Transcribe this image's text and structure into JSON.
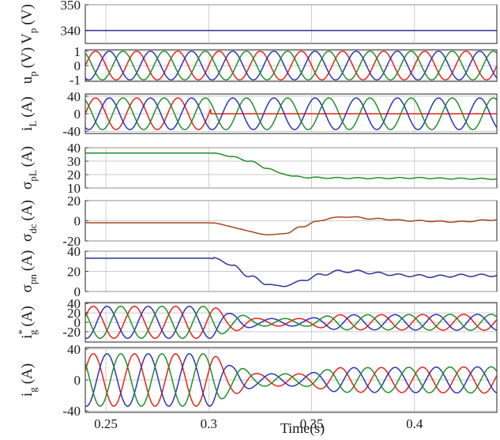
{
  "chart_data": {
    "type": "line",
    "xlabel": "Time(s)",
    "xlim": [
      0.24,
      0.44
    ],
    "xticks": [
      0.25,
      0.3,
      0.35,
      0.4
    ],
    "xtick_labels": [
      "0.25",
      "0.3",
      "0.35",
      "0.4"
    ],
    "grid": true,
    "colors": {
      "red": "#e8211b",
      "blue": "#2b35b2",
      "green": "#1f8e2a",
      "brown": "#a5471d",
      "navy": "#2a3393"
    },
    "panels": [
      {
        "id": "vp",
        "ylabel_main": "V",
        "ylabel_sub": "p",
        "ylabel_sup": "",
        "ylabel_unit": "(V)",
        "ylim": [
          335,
          350
        ],
        "yticks": [
          340,
          350
        ],
        "ytick_labels": [
          "340",
          "350"
        ],
        "series": [
          {
            "color": "navy",
            "kind": "constant",
            "value": 340
          }
        ]
      },
      {
        "id": "up",
        "ylabel_main": "u",
        "ylabel_sub": "p",
        "ylabel_sup": "",
        "ylabel_unit": "(V)",
        "ylim": [
          -1.1,
          1.1
        ],
        "yticks": [
          -1,
          0,
          1
        ],
        "ytick_labels": [
          "-1",
          "0",
          "1"
        ],
        "series": [
          {
            "color": "red",
            "kind": "sine",
            "freq_hz": 50,
            "phase_deg": 0,
            "amp_before": 1,
            "amp_after": 1
          },
          {
            "color": "blue",
            "kind": "sine",
            "freq_hz": 50,
            "phase_deg": -120,
            "amp_before": 1,
            "amp_after": 1
          },
          {
            "color": "green",
            "kind": "sine",
            "freq_hz": 50,
            "phase_deg": 120,
            "amp_before": 1,
            "amp_after": 1
          }
        ]
      },
      {
        "id": "iL",
        "ylabel_main": "i",
        "ylabel_sub": "L",
        "ylabel_sup": "",
        "ylabel_unit": "(A)",
        "ylim": [
          -45,
          45
        ],
        "yticks": [
          -40,
          0,
          40
        ],
        "ytick_labels": [
          "-40",
          "0",
          "40"
        ],
        "series": [
          {
            "color": "red",
            "kind": "sine",
            "freq_hz": 50,
            "phase_deg": 0,
            "amp_before": 36,
            "amp_after": 0,
            "t_change": 0.301
          },
          {
            "color": "blue",
            "kind": "sine",
            "freq_hz": 50,
            "phase_deg": -120,
            "amp_before": 36,
            "amp_after": 36
          },
          {
            "color": "green",
            "kind": "sine",
            "freq_hz": 50,
            "phase_deg": 120,
            "amp_before": 36,
            "amp_after": 36
          }
        ]
      },
      {
        "id": "sigma_pL",
        "ylabel_main": "σ",
        "ylabel_sub": "pL",
        "ylabel_sup": "",
        "ylabel_unit": "(A)",
        "ylim": [
          10,
          40
        ],
        "yticks": [
          10,
          20,
          30,
          40
        ],
        "ytick_labels": [
          "10",
          "20",
          "30",
          "40"
        ],
        "series": [
          {
            "color": "green",
            "kind": "points",
            "x": [
              0.24,
              0.3,
              0.305,
              0.312,
              0.32,
              0.328,
              0.335,
              0.342,
              0.35,
              0.36,
              0.38,
              0.4,
              0.42,
              0.44
            ],
            "y": [
              36,
              36,
              35.5,
              33,
              30,
              25,
              21,
              18.5,
              17.8,
              17.5,
              17.3,
              17.5,
              17.0,
              16.8
            ],
            "ripple": 0.4
          }
        ]
      },
      {
        "id": "sigma_dc",
        "ylabel_main": "σ",
        "ylabel_sub": "dc",
        "ylabel_sup": "",
        "ylabel_unit": "(A)",
        "ylim": [
          -20,
          20
        ],
        "yticks": [
          -20,
          0,
          20
        ],
        "ytick_labels": [
          "-20",
          "0",
          "20"
        ],
        "series": [
          {
            "color": "brown",
            "kind": "points",
            "x": [
              0.24,
              0.3,
              0.305,
              0.315,
              0.325,
              0.332,
              0.338,
              0.345,
              0.352,
              0.36,
              0.368,
              0.38,
              0.4,
              0.42,
              0.44
            ],
            "y": [
              -2,
              -2,
              -3,
              -8,
              -13,
              -14,
              -12,
              -6,
              -1,
              3,
              4,
              2,
              0,
              -1,
              1
            ],
            "ripple": 0.5
          }
        ]
      },
      {
        "id": "sigma_pn",
        "ylabel_main": "σ",
        "ylabel_sub": "pn",
        "ylabel_sup": "",
        "ylabel_unit": "(A)",
        "ylim": [
          0,
          40
        ],
        "yticks": [
          0,
          20,
          40
        ],
        "ytick_labels": [
          "0",
          "20",
          "40"
        ],
        "series": [
          {
            "color": "navy",
            "kind": "points",
            "x": [
              0.24,
              0.3,
              0.305,
              0.312,
              0.32,
              0.328,
              0.333,
              0.34,
              0.347,
              0.355,
              0.363,
              0.372,
              0.382,
              0.395,
              0.41,
              0.425,
              0.44
            ],
            "y": [
              33,
              33,
              32,
              25,
              15,
              8,
              5,
              7,
              12,
              17,
              20,
              20,
              18,
              16,
              15,
              16,
              16
            ],
            "ripple": 1.2
          }
        ]
      },
      {
        "id": "ig_ref",
        "ylabel_main": "i",
        "ylabel_sub": "g",
        "ylabel_sup": "*",
        "ylabel_unit": "(A)",
        "ylim": [
          -42,
          42
        ],
        "yticks": [
          -20,
          0,
          20,
          40
        ],
        "ytick_labels": [
          "-20",
          "0",
          "20",
          "40"
        ],
        "series": [
          {
            "color": "red",
            "kind": "sine_env",
            "freq_hz": 50,
            "phase_deg": 20,
            "env_t": [
              0.24,
              0.3,
              0.312,
              0.325,
              0.345,
              0.365,
              0.44
            ],
            "env_a": [
              34,
              34,
              18,
              8,
              8,
              16,
              17
            ]
          },
          {
            "color": "blue",
            "kind": "sine_env",
            "freq_hz": 50,
            "phase_deg": -100,
            "env_t": [
              0.24,
              0.3,
              0.312,
              0.325,
              0.345,
              0.365,
              0.44
            ],
            "env_a": [
              34,
              34,
              18,
              8,
              8,
              16,
              17
            ]
          },
          {
            "color": "green",
            "kind": "sine_env",
            "freq_hz": 50,
            "phase_deg": 140,
            "env_t": [
              0.24,
              0.3,
              0.312,
              0.325,
              0.345,
              0.365,
              0.44
            ],
            "env_a": [
              34,
              34,
              18,
              8,
              8,
              16,
              17
            ]
          }
        ]
      },
      {
        "id": "ig",
        "ylabel_main": "i",
        "ylabel_sub": "g",
        "ylabel_sup": "",
        "ylabel_unit": "(A)",
        "ylim": [
          -42,
          42
        ],
        "yticks": [
          -40,
          0,
          40
        ],
        "ytick_labels": [
          "-40",
          "0",
          "40"
        ],
        "series": [
          {
            "color": "red",
            "kind": "sine_env",
            "freq_hz": 50,
            "phase_deg": 20,
            "env_t": [
              0.24,
              0.3,
              0.312,
              0.325,
              0.345,
              0.365,
              0.44
            ],
            "env_a": [
              34,
              34,
              18,
              8,
              8,
              16,
              17
            ]
          },
          {
            "color": "blue",
            "kind": "sine_env",
            "freq_hz": 50,
            "phase_deg": -100,
            "env_t": [
              0.24,
              0.3,
              0.312,
              0.325,
              0.345,
              0.365,
              0.44
            ],
            "env_a": [
              34,
              34,
              18,
              8,
              8,
              16,
              17
            ]
          },
          {
            "color": "green",
            "kind": "sine_env",
            "freq_hz": 50,
            "phase_deg": 140,
            "env_t": [
              0.24,
              0.3,
              0.312,
              0.325,
              0.345,
              0.365,
              0.44
            ],
            "env_a": [
              34,
              34,
              18,
              8,
              8,
              16,
              17
            ]
          }
        ]
      }
    ]
  }
}
